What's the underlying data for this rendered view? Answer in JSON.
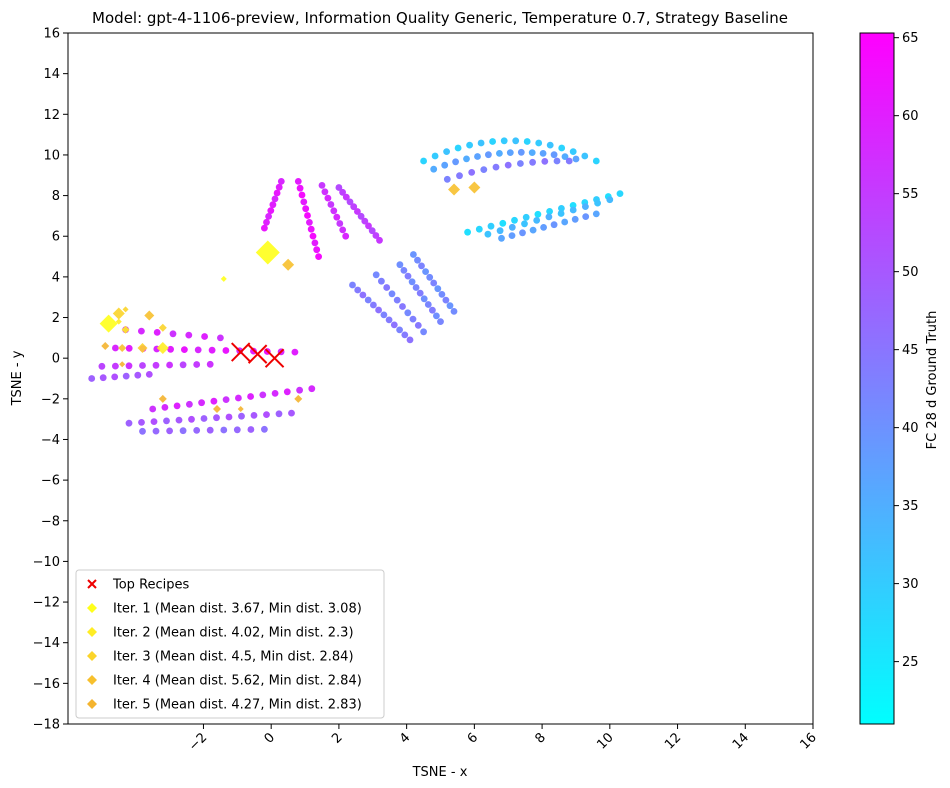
{
  "chart_data": {
    "type": "scatter",
    "title": "Model: gpt-4-1106-preview, Information Quality Generic, Temperature 0.7, Strategy Baseline",
    "xlabel": "TSNE - x",
    "ylabel": "TSNE - y",
    "xlim": [
      -6,
      16
    ],
    "ylim": [
      -18,
      16
    ],
    "x_ticks": [
      -2,
      0,
      2,
      4,
      6,
      8,
      10,
      12,
      14,
      16
    ],
    "y_ticks": [
      -18,
      -16,
      -14,
      -12,
      -10,
      -8,
      -6,
      -4,
      -2,
      0,
      2,
      4,
      6,
      8,
      10,
      12,
      14,
      16
    ],
    "tick_labels_x": [
      "−2",
      "0",
      "2",
      "4",
      "6",
      "8",
      "10",
      "12",
      "14",
      "16"
    ],
    "tick_labels_y": [
      "−18",
      "−16",
      "−14",
      "−12",
      "−10",
      "−8",
      "−6",
      "−4",
      "−2",
      "0",
      "2",
      "4",
      "6",
      "8",
      "10",
      "12",
      "14",
      "16"
    ],
    "grid": false,
    "legend_position": "lower-left",
    "colorbar": {
      "label": "FC 28 d Ground Truth",
      "min": 21,
      "max": 65.3,
      "ticks": [
        25,
        30,
        35,
        40,
        45,
        50,
        55,
        60,
        65
      ],
      "tick_labels": [
        "25",
        "30",
        "35",
        "40",
        "45",
        "50",
        "55",
        "60",
        "65"
      ],
      "colormap": "cool",
      "color_low": "#00ffff",
      "color_high": "#ff00ff"
    },
    "clusters": [
      {
        "kind": "arc",
        "x0": 4.5,
        "x1": 9.6,
        "ystart": 9.7,
        "ypeak": 10.7,
        "yend": 9.7,
        "n": 16,
        "value": 30
      },
      {
        "kind": "arc",
        "x0": 4.8,
        "x1": 9.0,
        "ystart": 9.3,
        "ypeak": 10.1,
        "yend": 9.8,
        "n": 14,
        "value": 37
      },
      {
        "kind": "arc",
        "x0": 5.2,
        "x1": 8.8,
        "ystart": 8.8,
        "ypeak": 9.5,
        "yend": 9.7,
        "n": 11,
        "value": 44
      },
      {
        "kind": "line",
        "x0": 5.8,
        "y0": 6.2,
        "x1": 10.3,
        "y1": 8.1,
        "n": 14,
        "value": 28
      },
      {
        "kind": "line",
        "x0": 6.4,
        "y0": 6.1,
        "x1": 10.0,
        "y1": 7.8,
        "n": 11,
        "value": 33
      },
      {
        "kind": "line",
        "x0": 6.8,
        "y0": 5.9,
        "x1": 9.6,
        "y1": 7.1,
        "n": 10,
        "value": 38
      },
      {
        "kind": "line",
        "x0": 0.3,
        "y0": 8.7,
        "x1": -0.2,
        "y1": 6.4,
        "n": 9,
        "value": 60
      },
      {
        "kind": "line",
        "x0": 0.8,
        "y0": 8.7,
        "x1": 1.4,
        "y1": 5.0,
        "n": 12,
        "value": 62
      },
      {
        "kind": "line",
        "x0": 1.5,
        "y0": 8.5,
        "x1": 2.2,
        "y1": 6.0,
        "n": 9,
        "value": 57
      },
      {
        "kind": "line",
        "x0": 2.0,
        "y0": 8.4,
        "x1": 3.2,
        "y1": 5.8,
        "n": 12,
        "value": 54
      },
      {
        "kind": "line",
        "x0": 2.4,
        "y0": 3.6,
        "x1": 4.1,
        "y1": 0.9,
        "n": 12,
        "value": 44
      },
      {
        "kind": "line",
        "x0": 3.1,
        "y0": 4.1,
        "x1": 4.5,
        "y1": 1.3,
        "n": 10,
        "value": 43
      },
      {
        "kind": "line",
        "x0": 3.8,
        "y0": 4.6,
        "x1": 5.0,
        "y1": 1.8,
        "n": 11,
        "value": 42
      },
      {
        "kind": "line",
        "x0": 4.2,
        "y0": 5.1,
        "x1": 5.4,
        "y1": 2.3,
        "n": 11,
        "value": 41
      },
      {
        "kind": "line",
        "x0": -5.3,
        "y0": -1.0,
        "x1": -3.6,
        "y1": -0.8,
        "n": 6,
        "value": 50
      },
      {
        "kind": "line",
        "x0": -5.0,
        "y0": -0.4,
        "x1": -1.8,
        "y1": -0.3,
        "n": 9,
        "value": 55
      },
      {
        "kind": "line",
        "x0": -4.6,
        "y0": 0.5,
        "x1": 0.7,
        "y1": 0.3,
        "n": 14,
        "value": 60
      },
      {
        "kind": "line",
        "x0": -4.3,
        "y0": 1.4,
        "x1": -1.5,
        "y1": 1.0,
        "n": 7,
        "value": 58
      },
      {
        "kind": "line",
        "x0": -3.5,
        "y0": -2.5,
        "x1": 1.2,
        "y1": -1.5,
        "n": 14,
        "value": 58
      },
      {
        "kind": "line",
        "x0": -4.2,
        "y0": -3.2,
        "x1": 0.6,
        "y1": -2.7,
        "n": 14,
        "value": 50
      },
      {
        "kind": "line",
        "x0": -3.8,
        "y0": -3.6,
        "x1": -0.2,
        "y1": -3.5,
        "n": 10,
        "value": 47
      }
    ],
    "series": [
      {
        "name": "Top Recipes",
        "marker": "x",
        "color": "#ee0000",
        "size": 9,
        "x": [
          -0.9,
          -0.4,
          0.1
        ],
        "y": [
          0.3,
          0.2,
          0.0
        ]
      },
      {
        "name": "Iter. 1 (Mean dist. 3.67, Min dist. 3.08)",
        "marker": "diamond",
        "color": "#ffff1a",
        "x": [
          -4.8,
          -0.1,
          -1.4
        ],
        "y": [
          1.7,
          5.2,
          3.9
        ],
        "sizes": [
          9,
          12,
          3
        ]
      },
      {
        "name": "Iter. 2 (Mean dist. 4.02, Min dist. 2.3)",
        "marker": "diamond",
        "color": "#ffed24",
        "x": [
          -3.2,
          -4.3,
          -4.5
        ],
        "y": [
          0.5,
          1.4,
          1.8
        ],
        "sizes": [
          6,
          4,
          3
        ]
      },
      {
        "name": "Iter. 3 (Mean dist. 4.5, Min dist. 2.84)",
        "marker": "diamond",
        "color": "#fbd42a",
        "x": [
          -4.5,
          -3.8,
          -3.2,
          -4.3
        ],
        "y": [
          2.2,
          0.5,
          1.5,
          2.4
        ],
        "sizes": [
          6,
          5,
          4,
          3
        ]
      },
      {
        "name": "Iter. 4 (Mean dist. 5.62, Min dist. 2.84)",
        "marker": "diamond",
        "color": "#f7c02d",
        "x": [
          5.4,
          6.0,
          0.5,
          -3.6,
          -4.4
        ],
        "y": [
          8.3,
          8.4,
          4.6,
          2.1,
          0.5
        ],
        "sizes": [
          6,
          6,
          6,
          5,
          4
        ]
      },
      {
        "name": "Iter. 5 (Mean dist. 4.27, Min dist. 2.83)",
        "marker": "diamond",
        "color": "#f4b42f",
        "x": [
          -4.9,
          -4.4,
          -3.2,
          -1.6,
          -0.9,
          0.8
        ],
        "y": [
          0.6,
          -0.3,
          -2.0,
          -2.5,
          -2.5,
          -2.0
        ],
        "sizes": [
          4,
          3,
          4,
          4,
          3,
          4
        ]
      }
    ]
  }
}
